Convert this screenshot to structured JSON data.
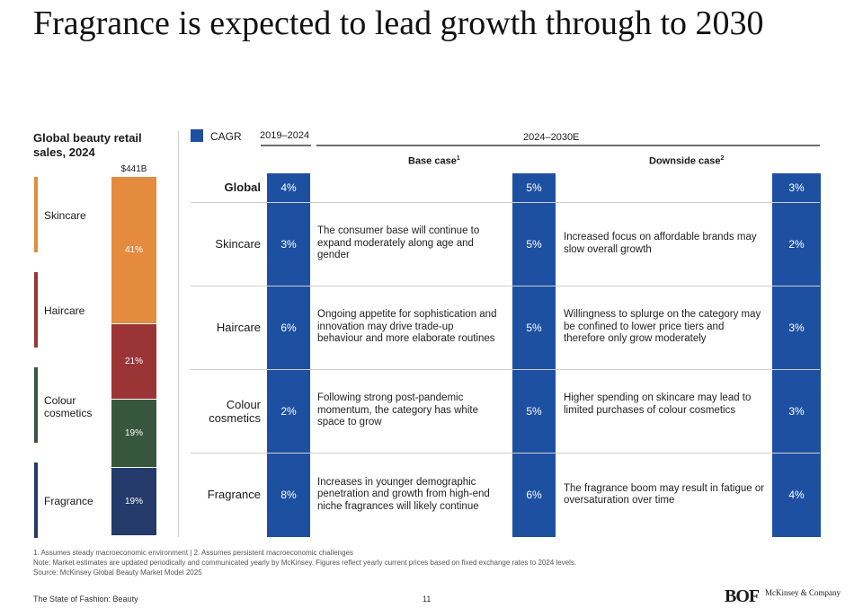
{
  "title": "Fragrance is expected to lead growth through to 2030",
  "left_panel": {
    "title": "Global beauty retail sales, 2024",
    "total": "$441B"
  },
  "legend": {
    "label": "CAGR",
    "color": "#1e50a2"
  },
  "headers": {
    "period_hist": "2019–2024",
    "period_fore": "2024–2030E",
    "base_case": "Base case",
    "base_sup": "1",
    "downside_case": "Downside case",
    "downside_sup": "2"
  },
  "chart_data": [
    {
      "type": "bar",
      "title": "Global beauty retail sales, 2024",
      "total_label": "$441B",
      "stacked": true,
      "categories": [
        "Skincare",
        "Haircare",
        "Colour cosmetics",
        "Fragrance"
      ],
      "values": [
        41,
        21,
        19,
        19
      ],
      "value_labels": [
        "41%",
        "21%",
        "19%",
        "19%"
      ],
      "unit": "%",
      "colors": [
        "#e48b3d",
        "#9b3535",
        "#36573b",
        "#243a6a"
      ]
    },
    {
      "type": "table",
      "title": "CAGR",
      "columns": [
        "2019–2024",
        "2024–2030E Base case",
        "2024–2030E Downside case"
      ],
      "rows": [
        {
          "category": "Global",
          "cagr_2019_2024": 4,
          "base_case": 5,
          "downside_case": 3
        },
        {
          "category": "Skincare",
          "cagr_2019_2024": 3,
          "base_case": 5,
          "downside_case": 2
        },
        {
          "category": "Haircare",
          "cagr_2019_2024": 6,
          "base_case": 5,
          "downside_case": 3
        },
        {
          "category": "Colour cosmetics",
          "cagr_2019_2024": 2,
          "base_case": 5,
          "downside_case": 3
        },
        {
          "category": "Fragrance",
          "cagr_2019_2024": 8,
          "base_case": 6,
          "downside_case": 4
        }
      ]
    }
  ],
  "rows": [
    {
      "label": "Global",
      "hist": "4%",
      "base": "5%",
      "down": "3%",
      "base_text": "",
      "down_text": ""
    },
    {
      "label": "Skincare",
      "hist": "3%",
      "base": "5%",
      "down": "2%",
      "base_text": "The consumer base will continue to expand moderately along age and gender",
      "down_text": "Increased focus on affordable brands may slow overall growth"
    },
    {
      "label": "Haircare",
      "hist": "6%",
      "base": "5%",
      "down": "3%",
      "base_text": "Ongoing appetite for sophistication and innovation may drive trade-up behaviour and more elaborate routines",
      "down_text": "Willingness to splurge on the category may be confined to lower price tiers and therefore only grow moderately"
    },
    {
      "label": "Colour cosmetics",
      "hist": "2%",
      "base": "5%",
      "down": "3%",
      "base_text": "Following strong post-pandemic momentum, the category has white space to grow",
      "down_text": "Higher spending on skincare may lead to limited purchases of colour cosmetics"
    },
    {
      "label": "Fragrance",
      "hist": "8%",
      "base": "6%",
      "down": "4%",
      "base_text": "Increases in younger demographic penetration and growth from high-end niche fragrances will likely continue",
      "down_text": "The fragrance boom may result in fatigue or oversaturation over time"
    }
  ],
  "footnotes": {
    "line1": "1. Assumes steady macroeconomic environment | 2. Assumes persistent macroeconomic challenges",
    "line2": "Note: Market estimates are updated periodically and communicated yearly by McKinsey. Figures reflect yearly current prices based on fixed exchange rates to 2024 levels.",
    "line3": "Source: McKinsey Global Beauty Market Model 2025"
  },
  "footer": {
    "publication": "The State of Fashion: Beauty",
    "page": "11",
    "logo_bof": "BOF",
    "logo_mck": "McKinsey & Company"
  }
}
